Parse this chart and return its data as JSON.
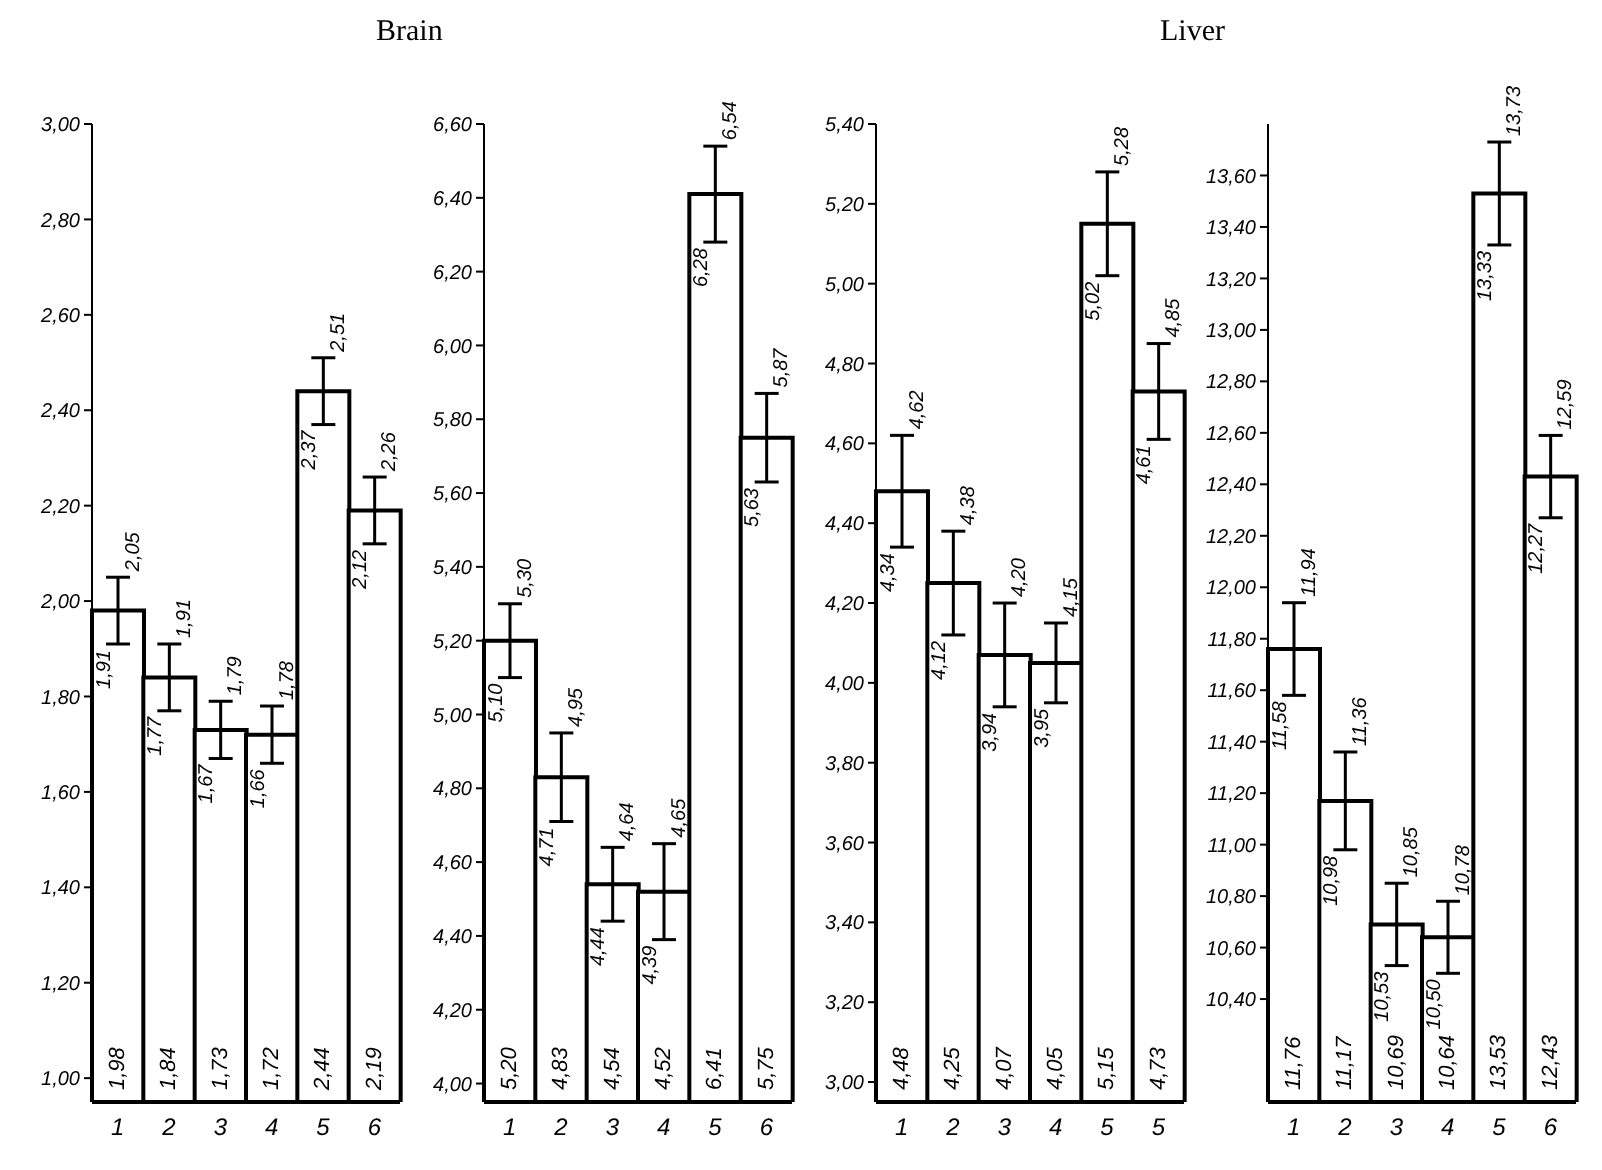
{
  "chart_data": [
    {
      "type": "bar",
      "title": "Brain",
      "categories": [
        "1",
        "2",
        "3",
        "4",
        "5",
        "6"
      ],
      "values": [
        1.98,
        1.84,
        1.73,
        1.72,
        2.44,
        2.19
      ],
      "errors": [
        [
          1.91,
          2.05
        ],
        [
          1.77,
          1.91
        ],
        [
          1.67,
          1.79
        ],
        [
          1.66,
          1.78
        ],
        [
          2.37,
          2.51
        ],
        [
          2.12,
          2.26
        ]
      ],
      "value_labels": [
        "1,98",
        "1,84",
        "1,73",
        "1,72",
        "2,44",
        "2,19"
      ],
      "color": "#ffffff",
      "ylim": [
        0.95,
        3.0
      ],
      "yticks": [
        {
          "value": 1.0,
          "label": "1,00"
        },
        {
          "value": 1.2,
          "label": "1,20"
        },
        {
          "value": 1.4,
          "label": "1,40"
        },
        {
          "value": 1.6,
          "label": "1,60"
        },
        {
          "value": 1.8,
          "label": "1,80"
        },
        {
          "value": 2.0,
          "label": "2,00"
        },
        {
          "value": 2.2,
          "label": "2,20"
        },
        {
          "value": 2.4,
          "label": "2,40"
        },
        {
          "value": 2.6,
          "label": "2,60"
        },
        {
          "value": 2.8,
          "label": "2,80"
        },
        {
          "value": 3.0,
          "label": "3,00"
        }
      ],
      "annotations": [
        {
          "text": "1,91",
          "x": "1",
          "y": 1.91
        },
        {
          "text": "2,05",
          "x": "1",
          "y": 2.05
        },
        {
          "text": "1,77",
          "x": "2",
          "y": 1.77
        },
        {
          "text": "1,91",
          "x": "2",
          "y": 1.91
        },
        {
          "text": "1,67",
          "x": "3",
          "y": 1.67
        },
        {
          "text": "1,79",
          "x": "3",
          "y": 1.79
        },
        {
          "text": "1,66",
          "x": "4",
          "y": 1.66
        },
        {
          "text": "1,78",
          "x": "4",
          "y": 1.78
        },
        {
          "text": "2,37",
          "x": "5",
          "y": 2.37
        },
        {
          "text": "2,51",
          "x": "5",
          "y": 2.51
        },
        {
          "text": "2,12",
          "x": "6",
          "y": 2.12
        },
        {
          "text": "2,26",
          "x": "6",
          "y": 2.26
        }
      ],
      "grid": false,
      "legend": false
    },
    {
      "type": "bar",
      "categories": [
        "1",
        "2",
        "3",
        "4",
        "5",
        "6"
      ],
      "values": [
        5.2,
        4.83,
        4.54,
        4.52,
        6.41,
        5.75
      ],
      "errors": [
        [
          5.1,
          5.3
        ],
        [
          4.71,
          4.95
        ],
        [
          4.44,
          4.64
        ],
        [
          4.39,
          4.65
        ],
        [
          6.28,
          6.54
        ],
        [
          5.63,
          5.87
        ]
      ],
      "value_labels": [
        "5,20",
        "4,83",
        "4,54",
        "4,52",
        "6,41",
        "5,75"
      ],
      "color": "#ffffff",
      "ylim": [
        3.95,
        6.6
      ],
      "yticks": [
        {
          "value": 4.0,
          "label": "4,00"
        },
        {
          "value": 4.2,
          "label": "4,20"
        },
        {
          "value": 4.4,
          "label": "4,40"
        },
        {
          "value": 4.6,
          "label": "4,60"
        },
        {
          "value": 4.8,
          "label": "4,80"
        },
        {
          "value": 5.0,
          "label": "5,00"
        },
        {
          "value": 5.2,
          "label": "5,20"
        },
        {
          "value": 5.4,
          "label": "5,40"
        },
        {
          "value": 5.6,
          "label": "5,60"
        },
        {
          "value": 5.8,
          "label": "5,80"
        },
        {
          "value": 6.0,
          "label": "6,00"
        },
        {
          "value": 6.2,
          "label": "6,20"
        },
        {
          "value": 6.4,
          "label": "6,40"
        },
        {
          "value": 6.6,
          "label": "6,60"
        }
      ],
      "annotations": [
        {
          "text": "5,10",
          "x": "1",
          "y": 5.1
        },
        {
          "text": "5,30",
          "x": "1",
          "y": 5.3
        },
        {
          "text": "4,71",
          "x": "2",
          "y": 4.71
        },
        {
          "text": "4,95",
          "x": "2",
          "y": 4.95
        },
        {
          "text": "4,44",
          "x": "3",
          "y": 4.44
        },
        {
          "text": "4,64",
          "x": "3",
          "y": 4.64
        },
        {
          "text": "4,39",
          "x": "4",
          "y": 4.39
        },
        {
          "text": "4,65",
          "x": "4",
          "y": 4.65
        },
        {
          "text": "6,28",
          "x": "5",
          "y": 6.28
        },
        {
          "text": "6,54",
          "x": "5",
          "y": 6.54
        },
        {
          "text": "5,63",
          "x": "6",
          "y": 5.63
        },
        {
          "text": "5,87",
          "x": "6",
          "y": 5.87
        }
      ],
      "grid": false,
      "legend": false
    },
    {
      "type": "bar",
      "title": "Liver",
      "categories": [
        "1",
        "2",
        "3",
        "4",
        "5",
        "5"
      ],
      "values": [
        4.48,
        4.25,
        4.07,
        4.05,
        5.15,
        4.73
      ],
      "errors": [
        [
          4.34,
          4.62
        ],
        [
          4.12,
          4.38
        ],
        [
          3.94,
          4.2
        ],
        [
          3.95,
          4.15
        ],
        [
          5.02,
          5.28
        ],
        [
          4.61,
          4.85
        ]
      ],
      "value_labels": [
        "4,48",
        "4,25",
        "4,07",
        "4,05",
        "5,15",
        "4,73"
      ],
      "color": "#ffffff",
      "ylim": [
        2.95,
        5.4
      ],
      "yticks": [
        {
          "value": 3.0,
          "label": "3,00"
        },
        {
          "value": 3.2,
          "label": "3,20"
        },
        {
          "value": 3.4,
          "label": "3,40"
        },
        {
          "value": 3.6,
          "label": "3,60"
        },
        {
          "value": 3.8,
          "label": "3,80"
        },
        {
          "value": 4.0,
          "label": "4,00"
        },
        {
          "value": 4.2,
          "label": "4,20"
        },
        {
          "value": 4.4,
          "label": "4,40"
        },
        {
          "value": 4.6,
          "label": "4,60"
        },
        {
          "value": 4.8,
          "label": "4,80"
        },
        {
          "value": 5.0,
          "label": "5,00"
        },
        {
          "value": 5.2,
          "label": "5,20"
        },
        {
          "value": 5.4,
          "label": "5,40"
        }
      ],
      "annotations": [
        {
          "text": "4,34",
          "x": "1",
          "y": 4.34
        },
        {
          "text": "4,62",
          "x": "1",
          "y": 4.62
        },
        {
          "text": "4,12",
          "x": "2",
          "y": 4.12
        },
        {
          "text": "4,38",
          "x": "2",
          "y": 4.38
        },
        {
          "text": "3,94",
          "x": "3",
          "y": 3.94
        },
        {
          "text": "4,20",
          "x": "3",
          "y": 4.2
        },
        {
          "text": "3,95",
          "x": "4",
          "y": 3.95
        },
        {
          "text": "4,15",
          "x": "4",
          "y": 4.15
        },
        {
          "text": "5,02",
          "x": "5",
          "y": 5.02
        },
        {
          "text": "5,28",
          "x": "5",
          "y": 5.28
        },
        "4,61",
        "4,85"
      ],
      "grid": false,
      "legend": false
    },
    {
      "type": "bar",
      "categories": [
        "1",
        "2",
        "3",
        "4",
        "5",
        "6"
      ],
      "values": [
        11.76,
        11.17,
        10.69,
        10.64,
        13.53,
        12.43
      ],
      "errors": [
        [
          11.58,
          11.94
        ],
        [
          10.98,
          11.36
        ],
        [
          10.53,
          10.85
        ],
        [
          10.5,
          10.78
        ],
        [
          13.33,
          13.73
        ],
        [
          12.27,
          12.59
        ]
      ],
      "value_labels": [
        "11,76",
        "11,17",
        "10,69",
        "10,64",
        "13,53",
        "12,43"
      ],
      "color": "#ffffff",
      "ylim": [
        10.0,
        13.8
      ],
      "yticks": [
        {
          "value": 10.4,
          "label": "10,40"
        },
        {
          "value": 10.6,
          "label": "10,60"
        },
        {
          "value": 10.8,
          "label": "10,80"
        },
        {
          "value": 11.0,
          "label": "11,00"
        },
        {
          "value": 11.2,
          "label": "11,20"
        },
        {
          "value": 11.4,
          "label": "11,40"
        },
        {
          "value": 11.6,
          "label": "11,60"
        },
        {
          "value": 11.8,
          "label": "11,80"
        },
        {
          "value": 12.0,
          "label": "12,00"
        },
        {
          "value": 12.2,
          "label": "12,20"
        },
        {
          "value": 12.4,
          "label": "12,40"
        },
        {
          "value": 12.6,
          "label": "12,60"
        },
        {
          "value": 12.8,
          "label": "12,80"
        },
        {
          "value": 13.0,
          "label": "13,00"
        },
        {
          "value": 13.2,
          "label": "13,20"
        },
        {
          "value": 13.4,
          "label": "13,40"
        },
        {
          "value": 13.6,
          "label": "13,60"
        }
      ],
      "annotations": [
        {
          "text": "11,58",
          "x": "1",
          "y": 11.58
        },
        {
          "text": "11,94",
          "x": "1",
          "y": 11.94
        },
        {
          "text": "10,98",
          "x": "2",
          "y": 10.98
        },
        {
          "text": "11,36",
          "x": "2",
          "y": 11.36
        },
        {
          "text": "10,53",
          "x": "3",
          "y": 10.53
        },
        {
          "text": "10,85",
          "x": "3",
          "y": 10.85
        },
        {
          "text": "10,50",
          "x": "4",
          "y": 10.5
        },
        {
          "text": "10,78",
          "x": "4",
          "y": 10.78
        },
        {
          "text": "13,33",
          "x": "5",
          "y": 13.33
        },
        {
          "text": "13,73",
          "x": "5",
          "y": 13.73
        },
        {
          "text": "12,27",
          "x": "6",
          "y": 12.27
        },
        {
          "text": "12,59",
          "x": "6",
          "y": 12.59
        }
      ],
      "grid": false,
      "legend": false
    }
  ]
}
